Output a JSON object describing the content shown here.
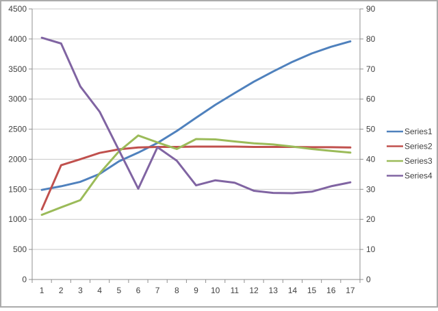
{
  "chart_data": {
    "type": "line",
    "title": "",
    "xlabel": "",
    "ylabel": "",
    "x_labels": [
      "1",
      "2",
      "3",
      "4",
      "5",
      "6",
      "7",
      "8",
      "9",
      "10",
      "11",
      "12",
      "13",
      "14",
      "15",
      "16",
      "17"
    ],
    "left_axis": {
      "min": 0,
      "max": 4500,
      "step": 500,
      "tick_labels": [
        "0",
        "500",
        "1000",
        "1500",
        "2000",
        "2500",
        "3000",
        "3500",
        "4000",
        "4500"
      ]
    },
    "right_axis": {
      "min": 0,
      "max": 90,
      "step": 10,
      "tick_labels": [
        "0",
        "10",
        "20",
        "30",
        "40",
        "50",
        "60",
        "70",
        "80",
        "90"
      ]
    },
    "grid": true,
    "legend_position": "right",
    "series": [
      {
        "name": "Series1",
        "axis": "left",
        "color": "#4F81BD",
        "values": [
          1490,
          1550,
          1625,
          1755,
          1965,
          2110,
          2270,
          2470,
          2690,
          2905,
          3100,
          3290,
          3460,
          3620,
          3760,
          3870,
          3960
        ]
      },
      {
        "name": "Series2",
        "axis": "left",
        "color": "#C0504D",
        "values": [
          1165,
          1900,
          2000,
          2105,
          2165,
          2195,
          2205,
          2205,
          2210,
          2210,
          2210,
          2205,
          2205,
          2205,
          2200,
          2200,
          2195
        ]
      },
      {
        "name": "Series3",
        "axis": "left",
        "color": "#9BBB59",
        "values": [
          1075,
          1200,
          1320,
          1765,
          2130,
          2395,
          2280,
          2170,
          2335,
          2330,
          2295,
          2265,
          2245,
          2210,
          2170,
          2140,
          2110
        ]
      },
      {
        "name": "Series4",
        "axis": "right",
        "color": "#8064A2",
        "values": [
          80.4,
          78.5,
          64.2,
          55.8,
          43,
          30.2,
          44,
          39.5,
          31.3,
          33,
          32.2,
          29.5,
          28.8,
          28.7,
          29.2,
          31,
          32.3
        ]
      }
    ],
    "colors": {
      "gridline": "#C9C9C9",
      "axis": "#8F8F8F",
      "label": "#3F3F3F",
      "background": "#FFFFFF",
      "frame_border": "#ABABAB"
    }
  }
}
